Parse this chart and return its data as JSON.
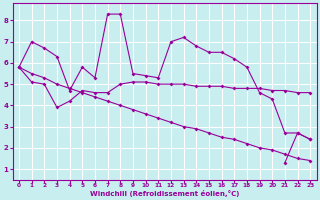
{
  "x_values": [
    0,
    1,
    2,
    3,
    4,
    5,
    6,
    7,
    8,
    9,
    10,
    11,
    12,
    13,
    14,
    15,
    16,
    17,
    18,
    19,
    20,
    21,
    22,
    23
  ],
  "line1_y": [
    5.8,
    7.0,
    6.7,
    6.3,
    4.7,
    5.8,
    5.3,
    8.3,
    8.3,
    5.5,
    5.4,
    5.3,
    7.0,
    7.2,
    6.8,
    6.5,
    6.5,
    6.2,
    5.8,
    4.6,
    4.3,
    2.7,
    2.7,
    2.4
  ],
  "line2_y": [
    5.8,
    5.1,
    5.0,
    3.9,
    4.2,
    4.7,
    4.6,
    4.6,
    5.0,
    5.1,
    5.1,
    5.0,
    5.0,
    5.0,
    4.9,
    4.9,
    4.9,
    4.8,
    4.8,
    4.8,
    4.7,
    4.7,
    4.6,
    4.6
  ],
  "line3_y": [
    5.8,
    5.5,
    5.3,
    5.0,
    4.8,
    4.6,
    4.4,
    4.2,
    4.0,
    3.8,
    3.6,
    3.4,
    3.2,
    3.0,
    2.9,
    2.7,
    2.5,
    2.4,
    2.2,
    2.0,
    1.9,
    1.7,
    1.5,
    1.4
  ],
  "line4_y": [
    null,
    null,
    null,
    null,
    null,
    null,
    null,
    null,
    null,
    null,
    null,
    null,
    null,
    null,
    null,
    null,
    null,
    null,
    null,
    null,
    null,
    1.3,
    2.7,
    2.4
  ],
  "bg_color": "#c8eef0",
  "grid_color": "#ffffff",
  "line_color": "#990099",
  "xlabel": "Windchill (Refroidissement éolien,°C)",
  "ylim": [
    0.5,
    8.8
  ],
  "xlim": [
    -0.5,
    23.5
  ],
  "yticks": [
    1,
    2,
    3,
    4,
    5,
    6,
    7,
    8
  ],
  "xticks": [
    0,
    1,
    2,
    3,
    4,
    5,
    6,
    7,
    8,
    9,
    10,
    11,
    12,
    13,
    14,
    15,
    16,
    17,
    18,
    19,
    20,
    21,
    22,
    23
  ],
  "marker": "D",
  "markersize": 2.0,
  "linewidth": 0.8
}
